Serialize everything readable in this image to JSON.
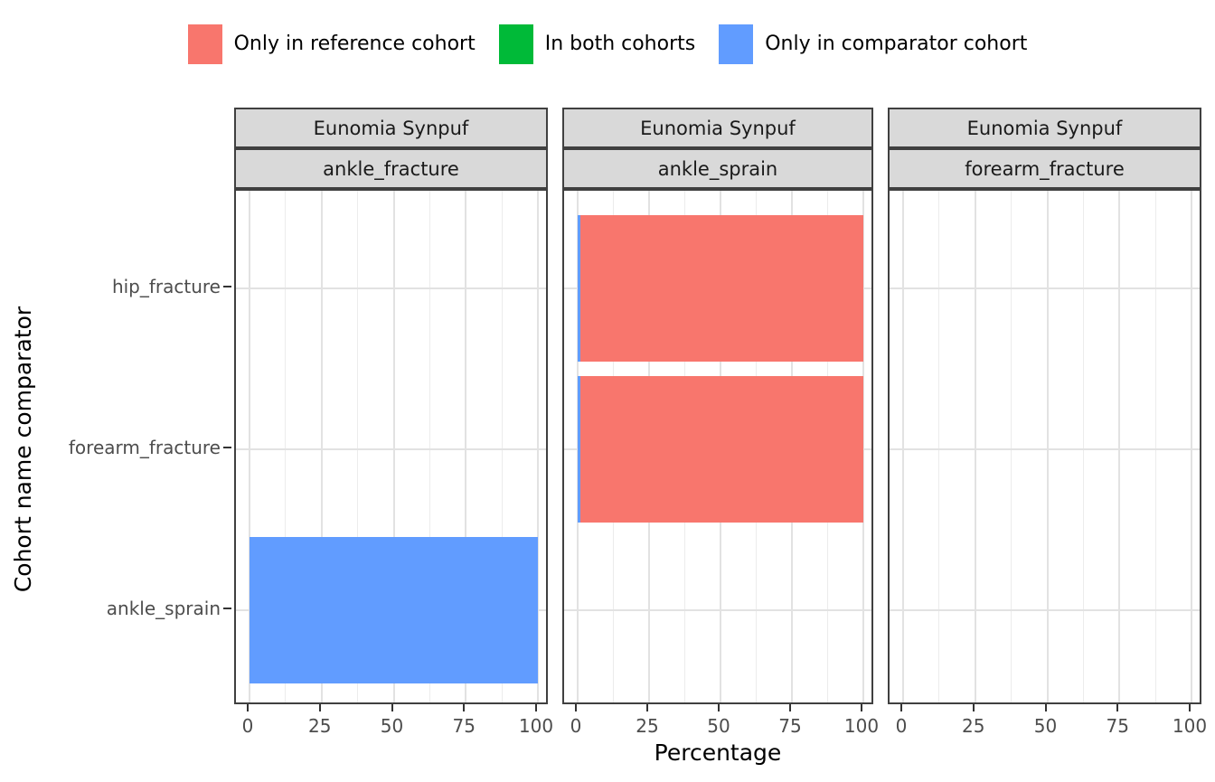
{
  "chart_data": {
    "type": "bar",
    "orientation": "horizontal",
    "stacked": true,
    "title": "",
    "xlabel": "Percentage",
    "ylabel": "Cohort name comparator",
    "x_range": [
      0,
      100
    ],
    "x_ticks": [
      0,
      25,
      50,
      75,
      100
    ],
    "x_minor_ticks": [
      12.5,
      37.5,
      62.5,
      87.5
    ],
    "grid": true,
    "legend_position": "top",
    "categories": [
      "hip_fracture",
      "forearm_fracture",
      "ankle_sprain"
    ],
    "legend": [
      {
        "label": "Only in reference cohort",
        "color": "#F8766D",
        "key": "reference"
      },
      {
        "label": "In both cohorts",
        "color": "#00BA38",
        "key": "both"
      },
      {
        "label": "Only in comparator cohort",
        "color": "#619CFF",
        "key": "comparator"
      }
    ],
    "facets": [
      {
        "strip_top": "Eunomia Synpuf",
        "strip_bottom": "ankle_fracture",
        "bars": [
          {
            "category": "ankle_sprain",
            "segments": [
              {
                "legend_key": "comparator",
                "value": 100
              }
            ]
          }
        ]
      },
      {
        "strip_top": "Eunomia Synpuf",
        "strip_bottom": "ankle_sprain",
        "bars": [
          {
            "category": "hip_fracture",
            "segments": [
              {
                "legend_key": "comparator",
                "value": 1
              },
              {
                "legend_key": "reference",
                "value": 99
              }
            ]
          },
          {
            "category": "forearm_fracture",
            "segments": [
              {
                "legend_key": "comparator",
                "value": 1
              },
              {
                "legend_key": "reference",
                "value": 99
              }
            ]
          }
        ]
      },
      {
        "strip_top": "Eunomia Synpuf",
        "strip_bottom": "forearm_fracture",
        "bars": []
      }
    ]
  }
}
